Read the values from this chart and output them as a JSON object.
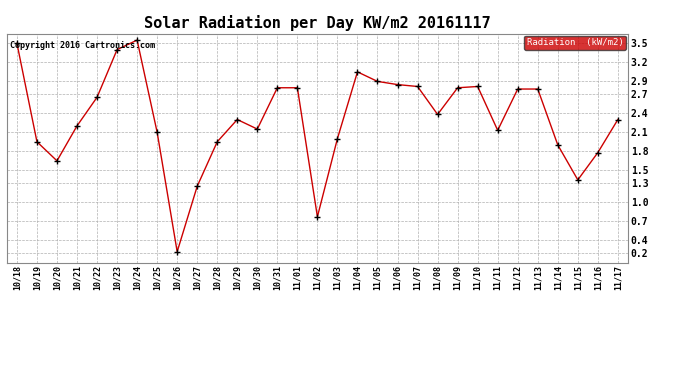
{
  "title": "Solar Radiation per Day KW/m2 20161117",
  "copyright_text": "Copyright 2016 Cartronics.com",
  "legend_label": "Radiation  (kW/m2)",
  "labels": [
    "10/18",
    "10/19",
    "10/20",
    "10/21",
    "10/22",
    "10/23",
    "10/24",
    "10/25",
    "10/26",
    "10/27",
    "10/28",
    "10/29",
    "10/30",
    "10/31",
    "11/01",
    "11/02",
    "11/03",
    "11/04",
    "11/05",
    "11/06",
    "11/07",
    "11/08",
    "11/09",
    "11/10",
    "11/11",
    "11/12",
    "11/13",
    "11/14",
    "11/15",
    "11/16",
    "11/17"
  ],
  "values": [
    3.5,
    1.95,
    1.65,
    2.2,
    2.65,
    3.4,
    3.55,
    2.1,
    0.22,
    1.25,
    1.95,
    2.3,
    2.15,
    2.8,
    2.8,
    0.77,
    2.0,
    3.05,
    2.9,
    2.85,
    2.82,
    2.38,
    2.8,
    2.82,
    2.13,
    2.78,
    2.78,
    1.9,
    1.35,
    1.78,
    2.3
  ],
  "line_color": "#cc0000",
  "marker_color": "#000000",
  "bg_color": "#ffffff",
  "grid_color": "#b0b0b0",
  "title_fontsize": 11,
  "legend_bg": "#cc0000",
  "legend_fg": "#ffffff",
  "yticks": [
    0.2,
    0.4,
    0.7,
    1.0,
    1.3,
    1.5,
    1.8,
    2.1,
    2.4,
    2.7,
    2.9,
    3.2,
    3.5
  ],
  "ylim": [
    0.05,
    3.65
  ],
  "font_family": "monospace"
}
